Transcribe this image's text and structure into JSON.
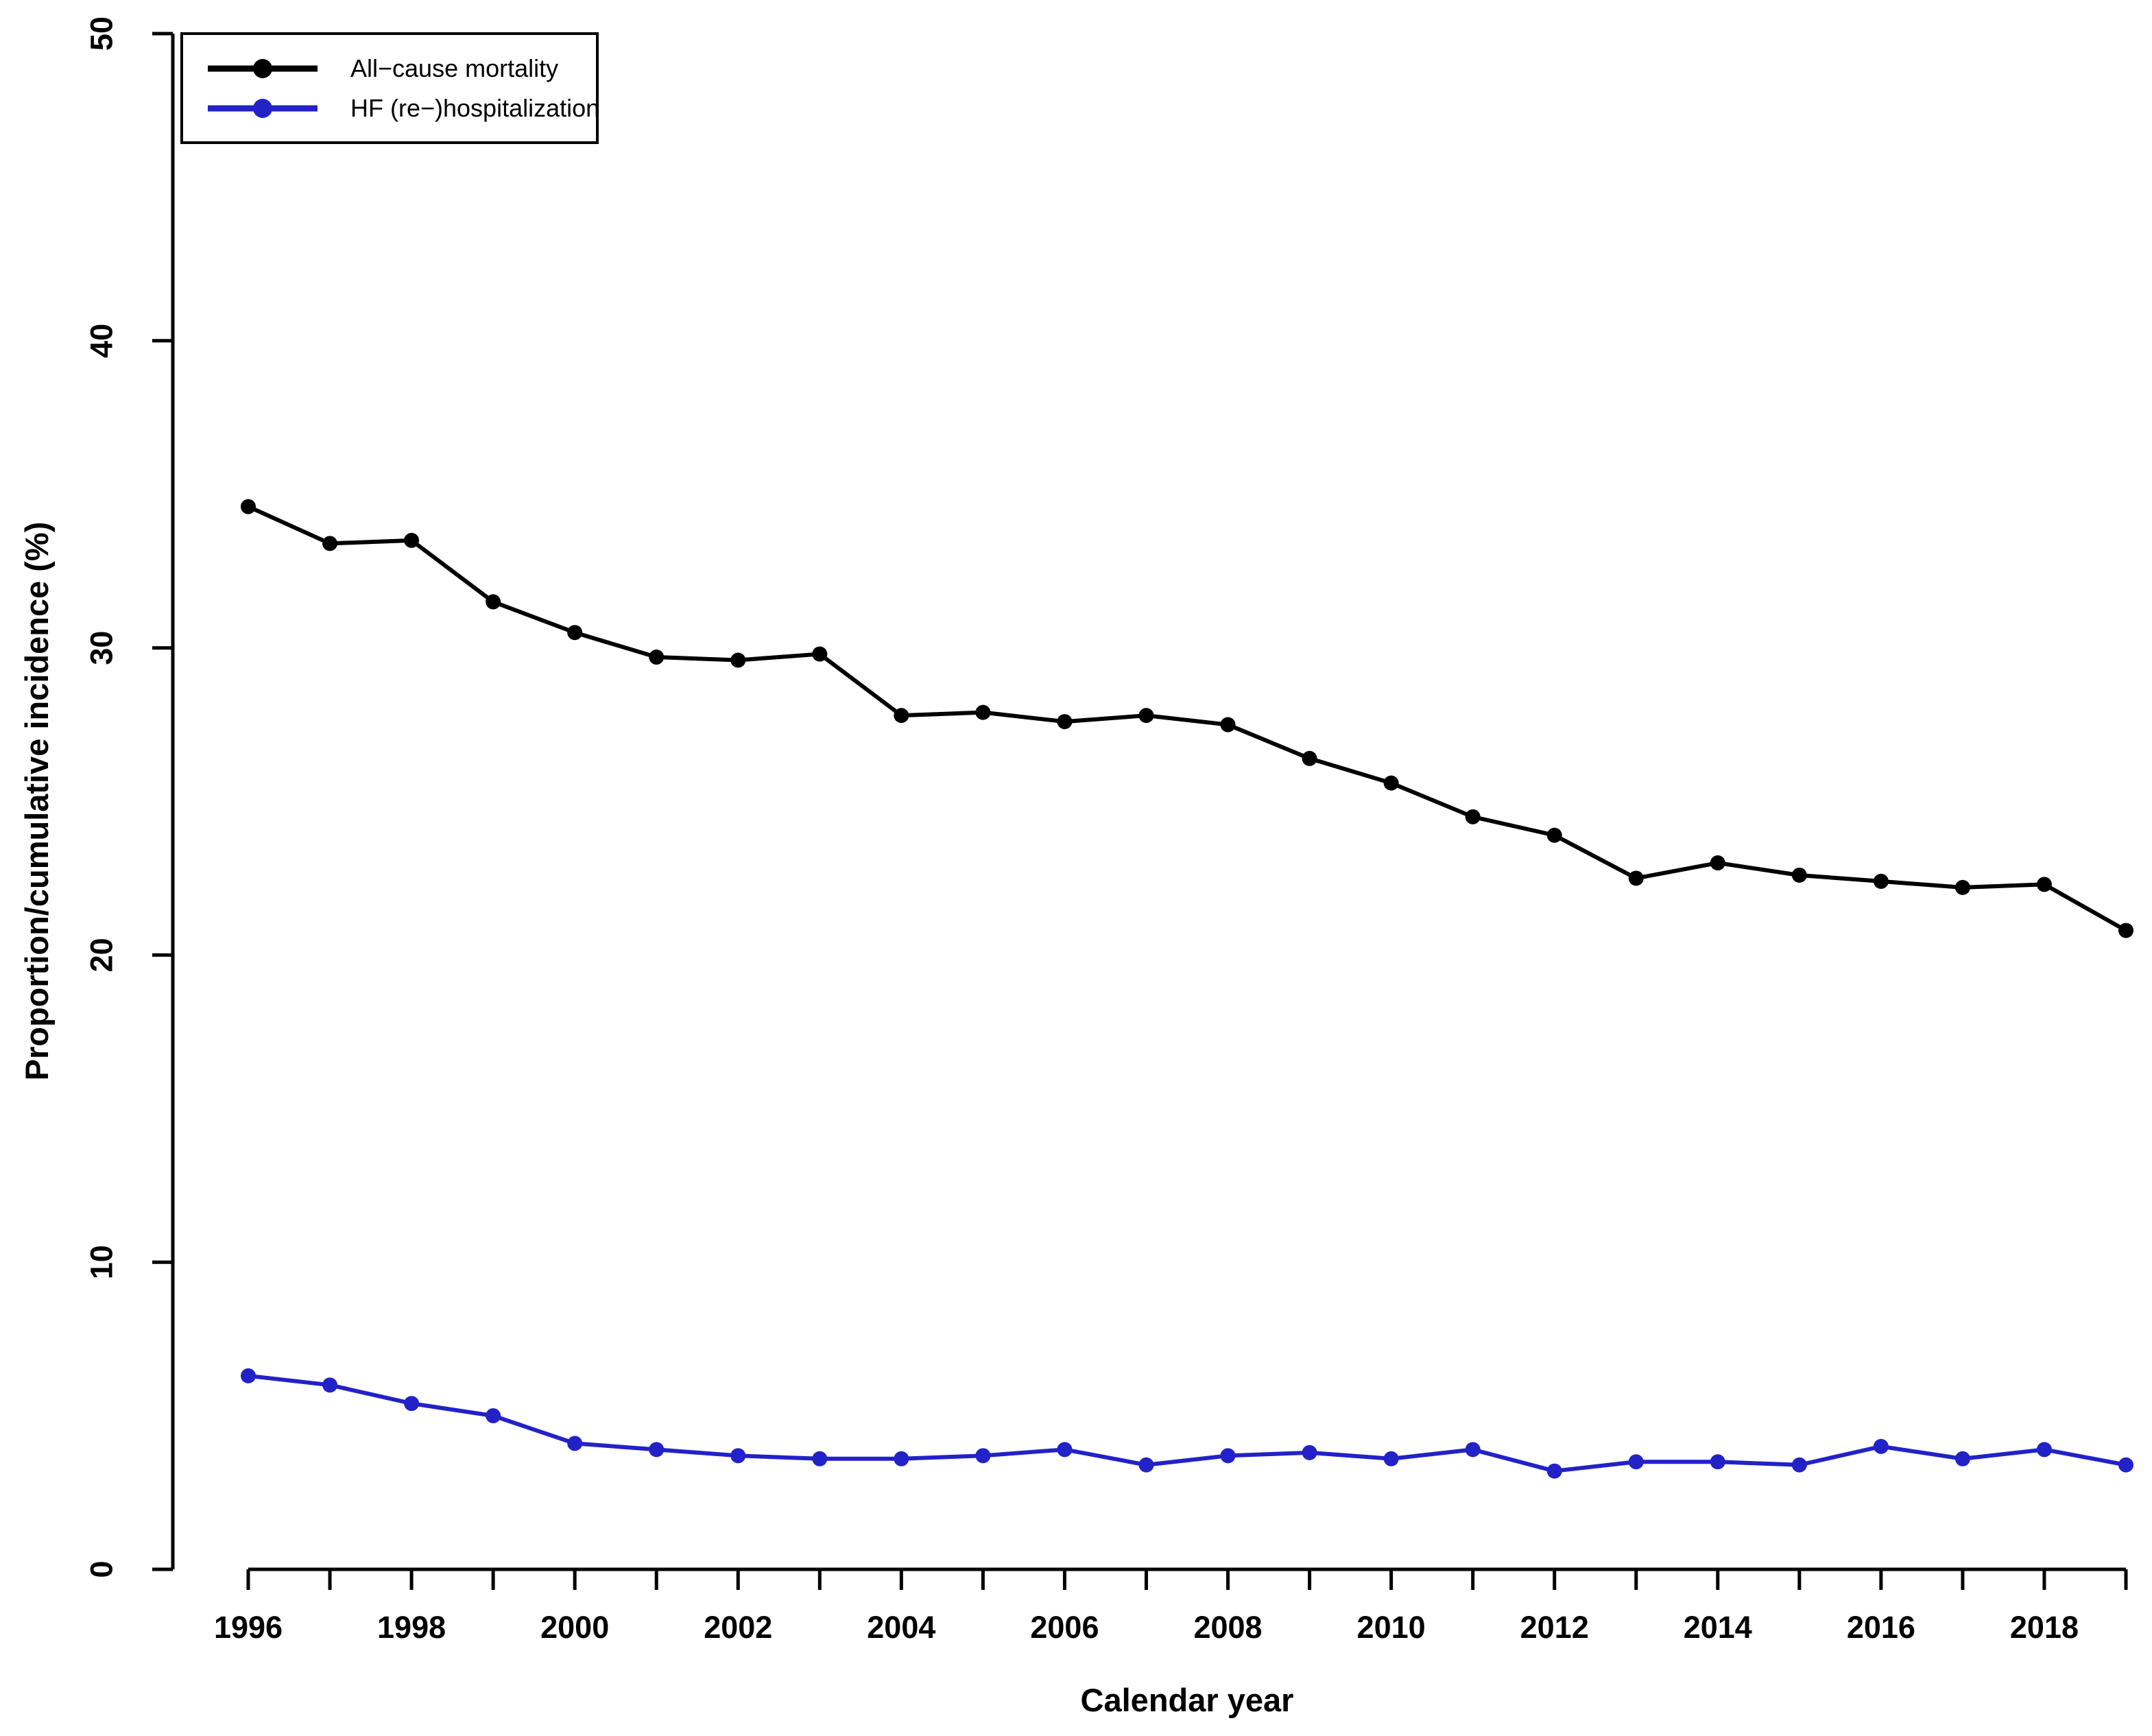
{
  "chart_data": {
    "type": "line",
    "x": [
      1996,
      1997,
      1998,
      1999,
      2000,
      2001,
      2002,
      2003,
      2004,
      2005,
      2006,
      2007,
      2008,
      2009,
      2010,
      2011,
      2012,
      2013,
      2014,
      2015,
      2016,
      2017,
      2018,
      2019
    ],
    "series": [
      {
        "name": "All−cause mortality",
        "color": "#000000",
        "values": [
          34.6,
          33.4,
          33.5,
          31.5,
          30.5,
          29.7,
          29.6,
          29.8,
          27.8,
          27.9,
          27.6,
          27.8,
          27.5,
          26.4,
          25.6,
          24.5,
          23.9,
          22.5,
          23.0,
          22.6,
          22.4,
          22.2,
          22.3,
          20.8
        ]
      },
      {
        "name": "HF (re−)hospitalization",
        "color": "#2222C8",
        "values": [
          6.3,
          6.0,
          5.4,
          5.0,
          4.1,
          3.9,
          3.7,
          3.6,
          3.6,
          3.7,
          3.9,
          3.4,
          3.7,
          3.8,
          3.6,
          3.9,
          3.2,
          3.5,
          3.5,
          3.4,
          4.0,
          3.6,
          3.9,
          3.4
        ]
      }
    ],
    "title": "",
    "xlabel": "Calendar year",
    "ylabel": "Proportion/cumulative incidence (%)",
    "ylim": [
      0,
      50
    ],
    "yticks": [
      0,
      10,
      20,
      30,
      40,
      50
    ],
    "xtick_labeled_years": [
      1996,
      1998,
      2000,
      2002,
      2004,
      2006,
      2008,
      2010,
      2012,
      2014,
      2016,
      2018
    ],
    "xticks_every_year": true,
    "grid": false,
    "marker": "filled-circle",
    "legend_position": "top-left"
  }
}
